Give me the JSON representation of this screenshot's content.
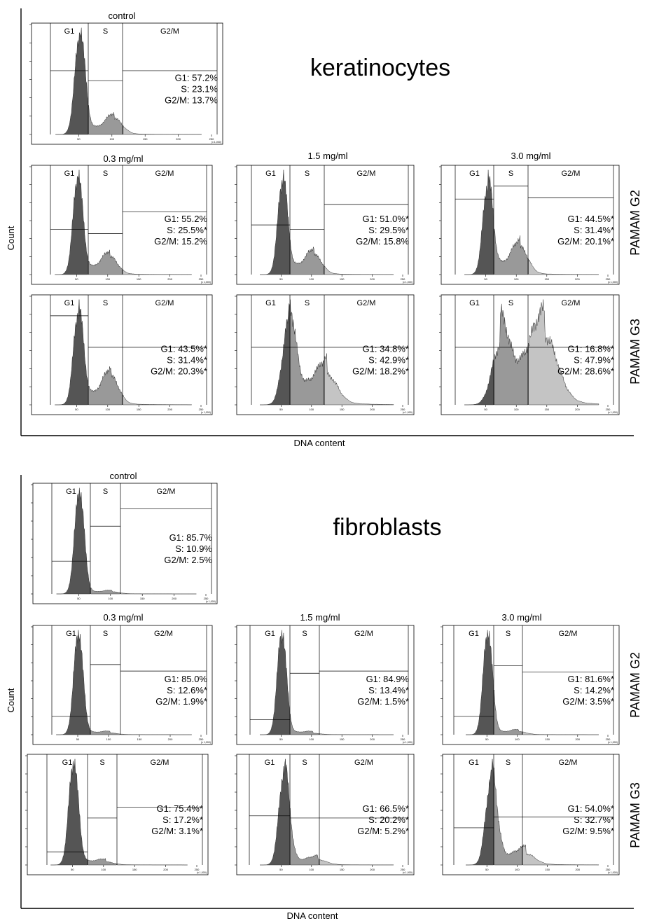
{
  "colors": {
    "g1_fill": "#555555",
    "s_fill": "#999999",
    "g2m_fill": "#c4c4c4",
    "frame": "#000000"
  },
  "panels": {
    "keratinocytes": {
      "title": "keratinocytes",
      "y_label": "Count",
      "x_label": "DNA content",
      "row_labels": [
        "PAMAM G2",
        "PAMAM G3"
      ],
      "control_label": "control",
      "concentration_labels": [
        "0.3 mg/ml",
        "1.5 mg/ml",
        "3.0 mg/ml"
      ]
    },
    "fibroblasts": {
      "title": "fibroblasts",
      "y_label": "Count",
      "x_label": "DNA content",
      "row_labels": [
        "PAMAM G2",
        "PAMAM G3"
      ],
      "control_label": "control",
      "concentration_labels": [
        "0.3 mg/ml",
        "1.5 mg/ml",
        "3.0 mg/ml"
      ]
    }
  },
  "chart_data": [
    {
      "type": "area",
      "panel": "keratinocytes",
      "treatment": "control",
      "gates": [
        "G1",
        "S",
        "G2/M"
      ],
      "xlim": [
        0,
        250
      ],
      "x_tick_labels": [
        "50",
        "100",
        "150",
        "200",
        "250"
      ],
      "x_unit": "(x 1,000)",
      "G1": "57.2%",
      "S": "23.1%",
      "G2M": "13.7%"
    },
    {
      "type": "area",
      "panel": "keratinocytes",
      "treatment": "PAMAM G2",
      "concentration": "0.3 mg/ml",
      "gates": [
        "G1",
        "S",
        "G2/M"
      ],
      "xlim": [
        0,
        250
      ],
      "x_tick_labels": [
        "50",
        "100",
        "150",
        "200",
        "250"
      ],
      "x_unit": "(x 1,000)",
      "G1": "55.2%",
      "S": "25.5%*",
      "G2M": "15.2%"
    },
    {
      "type": "area",
      "panel": "keratinocytes",
      "treatment": "PAMAM G2",
      "concentration": "1.5 mg/ml",
      "gates": [
        "G1",
        "S",
        "G2/M"
      ],
      "xlim": [
        0,
        250
      ],
      "x_tick_labels": [
        "50",
        "100",
        "150",
        "200",
        "250"
      ],
      "x_unit": "(x 1,000)",
      "G1": "51.0%*",
      "S": "29.5%*",
      "G2M": "15.8%"
    },
    {
      "type": "area",
      "panel": "keratinocytes",
      "treatment": "PAMAM G2",
      "concentration": "3.0 mg/ml",
      "gates": [
        "G1",
        "S",
        "G2/M"
      ],
      "xlim": [
        0,
        250
      ],
      "x_tick_labels": [
        "50",
        "100",
        "150",
        "200",
        "250"
      ],
      "x_unit": "(x 1,000)",
      "G1": "44.5%*",
      "S": "31.4%*",
      "G2M": "20.1%*"
    },
    {
      "type": "area",
      "panel": "keratinocytes",
      "treatment": "PAMAM G3",
      "concentration": "0.3 mg/ml",
      "gates": [
        "G1",
        "S",
        "G2/M"
      ],
      "xlim": [
        0,
        250
      ],
      "x_tick_labels": [
        "50",
        "100",
        "150",
        "200",
        "250"
      ],
      "x_unit": "(x 1,000)",
      "G1": "43.5%*",
      "S": "31.4%*",
      "G2M": "20.3%*"
    },
    {
      "type": "area",
      "panel": "keratinocytes",
      "treatment": "PAMAM G3",
      "concentration": "1.5 mg/ml",
      "gates": [
        "G1",
        "S",
        "G2/M"
      ],
      "xlim": [
        0,
        250
      ],
      "x_tick_labels": [
        "50",
        "100",
        "150",
        "200",
        "250"
      ],
      "x_unit": "(x 1,000)",
      "G1": "34.8%*",
      "S": "42.9%*",
      "G2M": "18.2%*"
    },
    {
      "type": "area",
      "panel": "keratinocytes",
      "treatment": "PAMAM G3",
      "concentration": "3.0 mg/ml",
      "gates": [
        "G1",
        "S",
        "G2/M"
      ],
      "xlim": [
        0,
        250
      ],
      "x_tick_labels": [
        "50",
        "100",
        "150",
        "200",
        "250"
      ],
      "x_unit": "(x 1,000)",
      "G1": "16.8%*",
      "S": "47.9%*",
      "G2M": "28.6%*"
    },
    {
      "type": "area",
      "panel": "fibroblasts",
      "treatment": "control",
      "gates": [
        "G1",
        "S",
        "G2/M"
      ],
      "xlim": [
        0,
        250
      ],
      "x_tick_labels": [
        "50",
        "100",
        "150",
        "200",
        "250"
      ],
      "x_unit": "(x 1,000)",
      "G1": "85.7%",
      "S": "10.9%",
      "G2M": "2.5%"
    },
    {
      "type": "area",
      "panel": "fibroblasts",
      "treatment": "PAMAM G2",
      "concentration": "0.3 mg/ml",
      "gates": [
        "G1",
        "S",
        "G2/M"
      ],
      "xlim": [
        0,
        250
      ],
      "x_tick_labels": [
        "50",
        "100",
        "150",
        "200",
        "250"
      ],
      "x_unit": "(x 1,000)",
      "G1": "85.0%",
      "S": "12.6%*",
      "G2M": "1.9%*"
    },
    {
      "type": "area",
      "panel": "fibroblasts",
      "treatment": "PAMAM G2",
      "concentration": "1.5 mg/ml",
      "gates": [
        "G1",
        "S",
        "G2/M"
      ],
      "xlim": [
        0,
        250
      ],
      "x_tick_labels": [
        "50",
        "100",
        "150",
        "200",
        "250"
      ],
      "x_unit": "(x 1,000)",
      "G1": "84.9%",
      "S": "13.4%*",
      "G2M": "1.5%*"
    },
    {
      "type": "area",
      "panel": "fibroblasts",
      "treatment": "PAMAM G2",
      "concentration": "3.0 mg/ml",
      "gates": [
        "G1",
        "S",
        "G2/M"
      ],
      "xlim": [
        0,
        250
      ],
      "x_tick_labels": [
        "50",
        "100",
        "150",
        "200",
        "250"
      ],
      "x_unit": "(x 1,000)",
      "G1": "81.6%*",
      "S": "14.2%*",
      "G2M": "3.5%*"
    },
    {
      "type": "area",
      "panel": "fibroblasts",
      "treatment": "PAMAM G3",
      "concentration": "0.3 mg/ml",
      "gates": [
        "G1",
        "S",
        "G2/M"
      ],
      "xlim": [
        0,
        250
      ],
      "x_tick_labels": [
        "50",
        "100",
        "150",
        "200",
        "250"
      ],
      "x_unit": "(x 1,000)",
      "G1": "75.4%*",
      "S": "17.2%*",
      "G2M": "3.1%*"
    },
    {
      "type": "area",
      "panel": "fibroblasts",
      "treatment": "PAMAM G3",
      "concentration": "1.5 mg/ml",
      "gates": [
        "G1",
        "S",
        "G2/M"
      ],
      "xlim": [
        0,
        250
      ],
      "x_tick_labels": [
        "50",
        "100",
        "150",
        "200",
        "250"
      ],
      "x_unit": "(x 1,000)",
      "G1": "66.5%*",
      "S": "20.2%*",
      "G2M": "5.2%*"
    },
    {
      "type": "area",
      "panel": "fibroblasts",
      "treatment": "PAMAM G3",
      "concentration": "3.0 mg/ml",
      "gates": [
        "G1",
        "S",
        "G2/M"
      ],
      "xlim": [
        0,
        250
      ],
      "x_tick_labels": [
        "50",
        "100",
        "150",
        "200",
        "250"
      ],
      "x_unit": "(x 1,000)",
      "G1": "54.0%*",
      "S": "32.7%*",
      "G2M": "9.5%*"
    }
  ]
}
